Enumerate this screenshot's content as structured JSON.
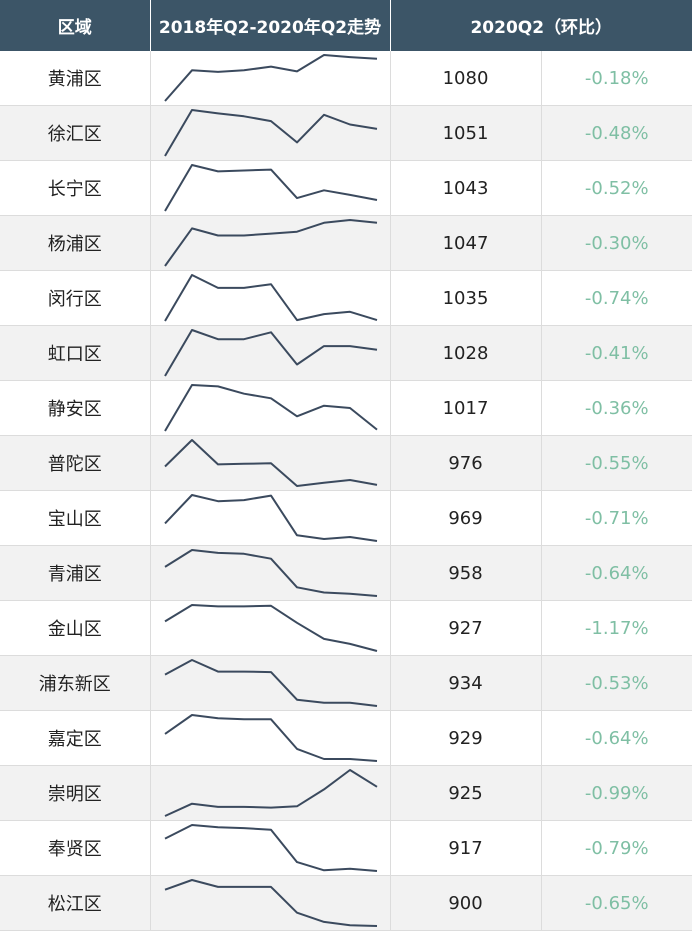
{
  "header": {
    "region": "区域",
    "trend": "2018年Q2-2020年Q2走势",
    "current": "2020Q2（环比）"
  },
  "colors": {
    "header_bg": "#3c5567",
    "line": "#3b4a5e",
    "change_text": "#7fbfa4",
    "alt_row": "#f2f2f2"
  },
  "chart_data": {
    "type": "table",
    "columns": [
      "区域",
      "2018年Q2-2020年Q2走势",
      "2020Q2（环比）"
    ],
    "rows": [
      {
        "region": "黄浦区",
        "value": "1080",
        "change": "-0.18%",
        "trend": [
          0,
          0.58,
          0.55,
          0.58,
          0.65,
          0.56,
          0.87,
          0.83,
          0.8
        ]
      },
      {
        "region": "徐汇区",
        "value": "1051",
        "change": "-0.48%",
        "trend": [
          0,
          0.95,
          0.88,
          0.82,
          0.72,
          0.28,
          0.85,
          0.65,
          0.56
        ]
      },
      {
        "region": "长宁区",
        "value": "1043",
        "change": "-0.52%",
        "trend": [
          0,
          1.0,
          0.86,
          0.88,
          0.9,
          0.28,
          0.45,
          0.35,
          0.24
        ]
      },
      {
        "region": "杨浦区",
        "value": "1047",
        "change": "-0.30%",
        "trend": [
          0,
          0.8,
          0.65,
          0.65,
          0.69,
          0.73,
          0.92,
          0.98,
          0.92
        ]
      },
      {
        "region": "闵行区",
        "value": "1035",
        "change": "-0.74%",
        "trend": [
          0,
          1.0,
          0.72,
          0.72,
          0.8,
          0.02,
          0.15,
          0.2,
          0.02
        ]
      },
      {
        "region": "虹口区",
        "value": "1028",
        "change": "-0.41%",
        "trend": [
          0,
          1.0,
          0.8,
          0.8,
          0.95,
          0.25,
          0.65,
          0.65,
          0.57
        ]
      },
      {
        "region": "静安区",
        "value": "1017",
        "change": "-0.36%",
        "trend": [
          0,
          1.0,
          0.97,
          0.81,
          0.71,
          0.32,
          0.55,
          0.5,
          0.03
        ]
      },
      {
        "region": "普陀区",
        "value": "976",
        "change": "-0.55%",
        "trend": [
          0,
          0.98,
          0.08,
          0.1,
          0.12,
          -0.72,
          -0.6,
          -0.5,
          -0.68
        ]
      },
      {
        "region": "宝山区",
        "value": "969",
        "change": "-0.71%",
        "trend": [
          0,
          1.0,
          0.78,
          0.82,
          0.98,
          -0.42,
          -0.55,
          -0.48,
          -0.62
        ]
      },
      {
        "region": "青浦区",
        "value": "958",
        "change": "-0.64%",
        "trend": [
          0,
          0.58,
          0.48,
          0.45,
          0.28,
          -0.7,
          -0.88,
          -0.92,
          -1.0
        ]
      },
      {
        "region": "金山区",
        "value": "927",
        "change": "-1.17%",
        "trend": [
          0,
          0.58,
          0.53,
          0.53,
          0.55,
          -0.05,
          -0.62,
          -0.8,
          -1.05
        ]
      },
      {
        "region": "浦东新区",
        "value": "934",
        "change": "-0.53%",
        "trend": [
          0,
          0.58,
          0.12,
          0.12,
          0.1,
          -1.0,
          -1.12,
          -1.12,
          -1.25
        ]
      },
      {
        "region": "嘉定区",
        "value": "929",
        "change": "-0.64%",
        "trend": [
          0,
          0.75,
          0.62,
          0.58,
          0.58,
          -0.6,
          -1.0,
          -1.0,
          -1.08
        ]
      },
      {
        "region": "崇明区",
        "value": "925",
        "change": "-0.99%",
        "trend": [
          0,
          0.38,
          0.28,
          0.28,
          0.26,
          0.3,
          0.82,
          1.42,
          0.9
        ]
      },
      {
        "region": "奉贤区",
        "value": "917",
        "change": "-0.79%",
        "trend": [
          0,
          0.58,
          0.48,
          0.45,
          0.38,
          -1.0,
          -1.35,
          -1.28,
          -1.38
        ]
      },
      {
        "region": "松江区",
        "value": "900",
        "change": "-0.65%",
        "trend": [
          0,
          0.42,
          0.12,
          0.12,
          0.12,
          -1.0,
          -1.4,
          -1.55,
          -1.58
        ]
      }
    ]
  }
}
